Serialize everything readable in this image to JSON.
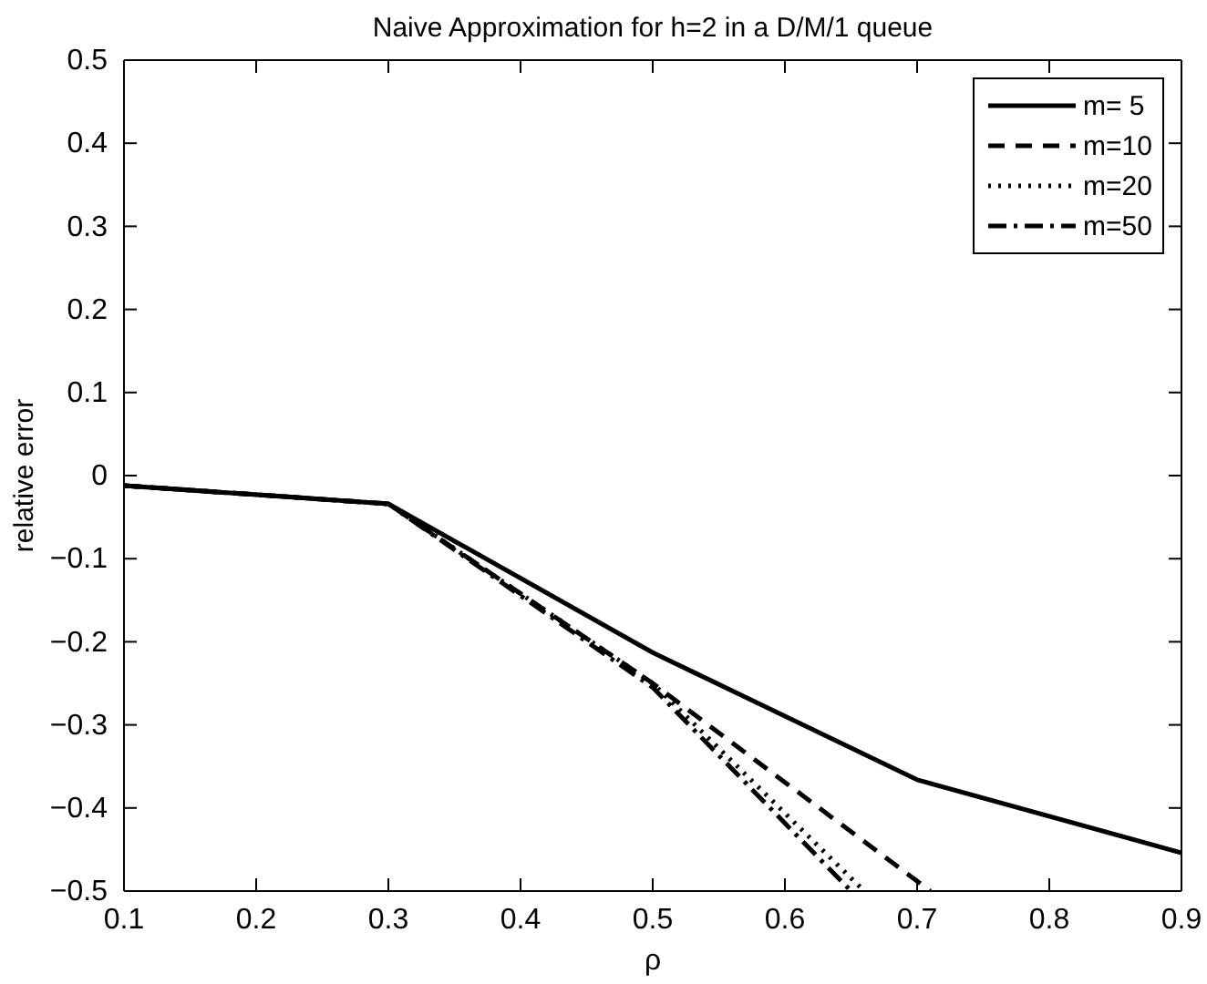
{
  "chart_data": {
    "type": "line",
    "title": "Naive Approximation for h=2 in a D/M/1 queue",
    "xlabel": "ρ",
    "ylabel": "relative error",
    "xlim": [
      0.1,
      0.9
    ],
    "xticks": [
      0.1,
      0.2,
      0.3,
      0.4,
      0.5,
      0.6,
      0.7,
      0.8,
      0.9
    ],
    "ylim": [
      -0.5,
      0.5
    ],
    "yticks": [
      -0.5,
      -0.4,
      -0.3,
      -0.2,
      -0.1,
      0,
      0.1,
      0.2,
      0.3,
      0.4,
      0.5
    ],
    "grid": false,
    "legend": "top right",
    "series": [
      {
        "name": "m= 5",
        "color": "#000000",
        "line_style": "solid",
        "x": [
          0.1,
          0.3,
          0.5,
          0.7,
          0.9
        ],
        "values": [
          -0.012,
          -0.034,
          -0.213,
          -0.366,
          -0.454
        ]
      },
      {
        "name": "m=10",
        "color": "#000000",
        "line_style": "dashed",
        "x": [
          0.1,
          0.3,
          0.5,
          0.71
        ],
        "values": [
          -0.012,
          -0.034,
          -0.25,
          -0.5
        ]
      },
      {
        "name": "m=20",
        "color": "#000000",
        "line_style": "dotted",
        "x": [
          0.1,
          0.3,
          0.5,
          0.66
        ],
        "values": [
          -0.012,
          -0.034,
          -0.25,
          -0.5
        ]
      },
      {
        "name": "m=50",
        "color": "#000000",
        "line_style": "dashdot",
        "x": [
          0.1,
          0.3,
          0.5,
          0.65
        ],
        "values": [
          -0.012,
          -0.034,
          -0.255,
          -0.5
        ]
      }
    ]
  }
}
